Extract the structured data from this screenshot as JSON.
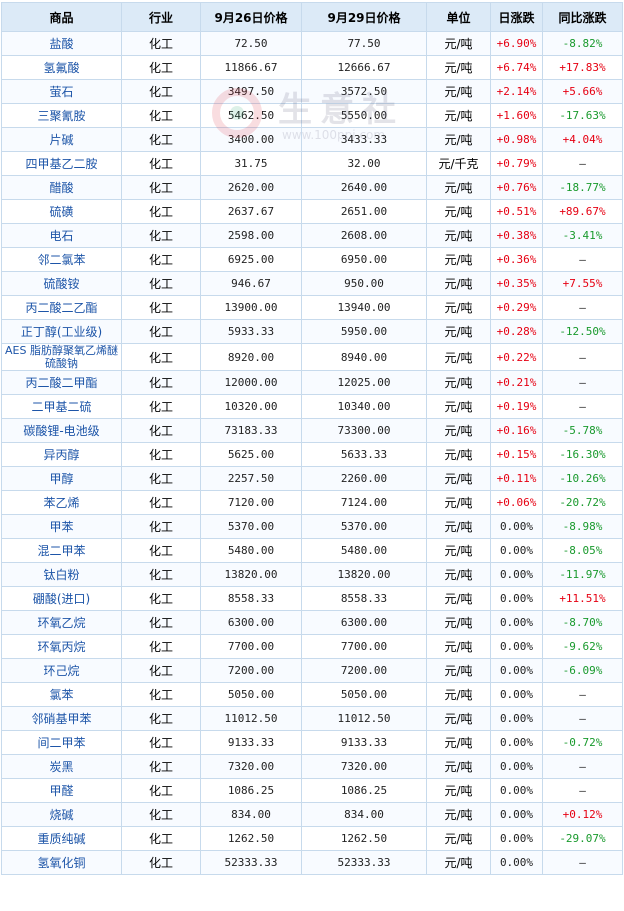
{
  "header": {
    "product": "商品",
    "industry": "行业",
    "price1": "9月26日价格",
    "price2": "9月29日价格",
    "unit": "单位",
    "daily": "日涨跌",
    "yoy": "同比涨跌"
  },
  "watermark": {
    "text": "生意社",
    "url": "www.100ppi.com"
  },
  "colors": {
    "up": "#e60012",
    "down": "#199a2d",
    "name": "#1d55a8",
    "header_bg": "#dceaf7"
  },
  "rows": [
    {
      "name": "盐酸",
      "industry": "化工",
      "p1": "72.50",
      "p2": "77.50",
      "unit": "元/吨",
      "daily": "+6.90%",
      "yoy": "-8.82%",
      "dc": "up",
      "yc": "down"
    },
    {
      "name": "氢氟酸",
      "industry": "化工",
      "p1": "11866.67",
      "p2": "12666.67",
      "unit": "元/吨",
      "daily": "+6.74%",
      "yoy": "+17.83%",
      "dc": "up",
      "yc": "up"
    },
    {
      "name": "萤石",
      "industry": "化工",
      "p1": "3497.50",
      "p2": "3572.50",
      "unit": "元/吨",
      "daily": "+2.14%",
      "yoy": "+5.66%",
      "dc": "up",
      "yc": "up"
    },
    {
      "name": "三聚氰胺",
      "industry": "化工",
      "p1": "5462.50",
      "p2": "5550.00",
      "unit": "元/吨",
      "daily": "+1.60%",
      "yoy": "-17.63%",
      "dc": "up",
      "yc": "down"
    },
    {
      "name": "片碱",
      "industry": "化工",
      "p1": "3400.00",
      "p2": "3433.33",
      "unit": "元/吨",
      "daily": "+0.98%",
      "yoy": "+4.04%",
      "dc": "up",
      "yc": "up"
    },
    {
      "name": "四甲基乙二胺",
      "industry": "化工",
      "p1": "31.75",
      "p2": "32.00",
      "unit": "元/千克",
      "daily": "+0.79%",
      "yoy": "—",
      "dc": "up",
      "yc": "flat"
    },
    {
      "name": "醋酸",
      "industry": "化工",
      "p1": "2620.00",
      "p2": "2640.00",
      "unit": "元/吨",
      "daily": "+0.76%",
      "yoy": "-18.77%",
      "dc": "up",
      "yc": "down"
    },
    {
      "name": "硫磺",
      "industry": "化工",
      "p1": "2637.67",
      "p2": "2651.00",
      "unit": "元/吨",
      "daily": "+0.51%",
      "yoy": "+89.67%",
      "dc": "up",
      "yc": "up"
    },
    {
      "name": "电石",
      "industry": "化工",
      "p1": "2598.00",
      "p2": "2608.00",
      "unit": "元/吨",
      "daily": "+0.38%",
      "yoy": "-3.41%",
      "dc": "up",
      "yc": "down"
    },
    {
      "name": "邻二氯苯",
      "industry": "化工",
      "p1": "6925.00",
      "p2": "6950.00",
      "unit": "元/吨",
      "daily": "+0.36%",
      "yoy": "—",
      "dc": "up",
      "yc": "flat"
    },
    {
      "name": "硫酸铵",
      "industry": "化工",
      "p1": "946.67",
      "p2": "950.00",
      "unit": "元/吨",
      "daily": "+0.35%",
      "yoy": "+7.55%",
      "dc": "up",
      "yc": "up"
    },
    {
      "name": "丙二酸二乙酯",
      "industry": "化工",
      "p1": "13900.00",
      "p2": "13940.00",
      "unit": "元/吨",
      "daily": "+0.29%",
      "yoy": "—",
      "dc": "up",
      "yc": "flat"
    },
    {
      "name": "正丁醇(工业级)",
      "industry": "化工",
      "p1": "5933.33",
      "p2": "5950.00",
      "unit": "元/吨",
      "daily": "+0.28%",
      "yoy": "-12.50%",
      "dc": "up",
      "yc": "down"
    },
    {
      "name": "AES 脂肪醇聚氧乙烯醚硫酸钠",
      "industry": "化工",
      "p1": "8920.00",
      "p2": "8940.00",
      "unit": "元/吨",
      "daily": "+0.22%",
      "yoy": "—",
      "dc": "up",
      "yc": "flat",
      "wrap": true
    },
    {
      "name": "丙二酸二甲酯",
      "industry": "化工",
      "p1": "12000.00",
      "p2": "12025.00",
      "unit": "元/吨",
      "daily": "+0.21%",
      "yoy": "—",
      "dc": "up",
      "yc": "flat"
    },
    {
      "name": "二甲基二硫",
      "industry": "化工",
      "p1": "10320.00",
      "p2": "10340.00",
      "unit": "元/吨",
      "daily": "+0.19%",
      "yoy": "—",
      "dc": "up",
      "yc": "flat"
    },
    {
      "name": "碳酸锂-电池级",
      "industry": "化工",
      "p1": "73183.33",
      "p2": "73300.00",
      "unit": "元/吨",
      "daily": "+0.16%",
      "yoy": "-5.78%",
      "dc": "up",
      "yc": "down"
    },
    {
      "name": "异丙醇",
      "industry": "化工",
      "p1": "5625.00",
      "p2": "5633.33",
      "unit": "元/吨",
      "daily": "+0.15%",
      "yoy": "-16.30%",
      "dc": "up",
      "yc": "down"
    },
    {
      "name": "甲醇",
      "industry": "化工",
      "p1": "2257.50",
      "p2": "2260.00",
      "unit": "元/吨",
      "daily": "+0.11%",
      "yoy": "-10.26%",
      "dc": "up",
      "yc": "down"
    },
    {
      "name": "苯乙烯",
      "industry": "化工",
      "p1": "7120.00",
      "p2": "7124.00",
      "unit": "元/吨",
      "daily": "+0.06%",
      "yoy": "-20.72%",
      "dc": "up",
      "yc": "down"
    },
    {
      "name": "甲苯",
      "industry": "化工",
      "p1": "5370.00",
      "p2": "5370.00",
      "unit": "元/吨",
      "daily": "0.00%",
      "yoy": "-8.98%",
      "dc": "flat",
      "yc": "down"
    },
    {
      "name": "混二甲苯",
      "industry": "化工",
      "p1": "5480.00",
      "p2": "5480.00",
      "unit": "元/吨",
      "daily": "0.00%",
      "yoy": "-8.05%",
      "dc": "flat",
      "yc": "down"
    },
    {
      "name": "钛白粉",
      "industry": "化工",
      "p1": "13820.00",
      "p2": "13820.00",
      "unit": "元/吨",
      "daily": "0.00%",
      "yoy": "-11.97%",
      "dc": "flat",
      "yc": "down"
    },
    {
      "name": "硼酸(进口)",
      "industry": "化工",
      "p1": "8558.33",
      "p2": "8558.33",
      "unit": "元/吨",
      "daily": "0.00%",
      "yoy": "+11.51%",
      "dc": "flat",
      "yc": "up"
    },
    {
      "name": "环氧乙烷",
      "industry": "化工",
      "p1": "6300.00",
      "p2": "6300.00",
      "unit": "元/吨",
      "daily": "0.00%",
      "yoy": "-8.70%",
      "dc": "flat",
      "yc": "down"
    },
    {
      "name": "环氧丙烷",
      "industry": "化工",
      "p1": "7700.00",
      "p2": "7700.00",
      "unit": "元/吨",
      "daily": "0.00%",
      "yoy": "-9.62%",
      "dc": "flat",
      "yc": "down"
    },
    {
      "name": "环己烷",
      "industry": "化工",
      "p1": "7200.00",
      "p2": "7200.00",
      "unit": "元/吨",
      "daily": "0.00%",
      "yoy": "-6.09%",
      "dc": "flat",
      "yc": "down"
    },
    {
      "name": "氯苯",
      "industry": "化工",
      "p1": "5050.00",
      "p2": "5050.00",
      "unit": "元/吨",
      "daily": "0.00%",
      "yoy": "—",
      "dc": "flat",
      "yc": "flat"
    },
    {
      "name": "邻硝基甲苯",
      "industry": "化工",
      "p1": "11012.50",
      "p2": "11012.50",
      "unit": "元/吨",
      "daily": "0.00%",
      "yoy": "—",
      "dc": "flat",
      "yc": "flat"
    },
    {
      "name": "间二甲苯",
      "industry": "化工",
      "p1": "9133.33",
      "p2": "9133.33",
      "unit": "元/吨",
      "daily": "0.00%",
      "yoy": "-0.72%",
      "dc": "flat",
      "yc": "down"
    },
    {
      "name": "炭黑",
      "industry": "化工",
      "p1": "7320.00",
      "p2": "7320.00",
      "unit": "元/吨",
      "daily": "0.00%",
      "yoy": "—",
      "dc": "flat",
      "yc": "flat"
    },
    {
      "name": "甲醛",
      "industry": "化工",
      "p1": "1086.25",
      "p2": "1086.25",
      "unit": "元/吨",
      "daily": "0.00%",
      "yoy": "—",
      "dc": "flat",
      "yc": "flat"
    },
    {
      "name": "烧碱",
      "industry": "化工",
      "p1": "834.00",
      "p2": "834.00",
      "unit": "元/吨",
      "daily": "0.00%",
      "yoy": "+0.12%",
      "dc": "flat",
      "yc": "up"
    },
    {
      "name": "重质纯碱",
      "industry": "化工",
      "p1": "1262.50",
      "p2": "1262.50",
      "unit": "元/吨",
      "daily": "0.00%",
      "yoy": "-29.07%",
      "dc": "flat",
      "yc": "down"
    },
    {
      "name": "氢氧化铜",
      "industry": "化工",
      "p1": "52333.33",
      "p2": "52333.33",
      "unit": "元/吨",
      "daily": "0.00%",
      "yoy": "—",
      "dc": "flat",
      "yc": "flat"
    }
  ]
}
